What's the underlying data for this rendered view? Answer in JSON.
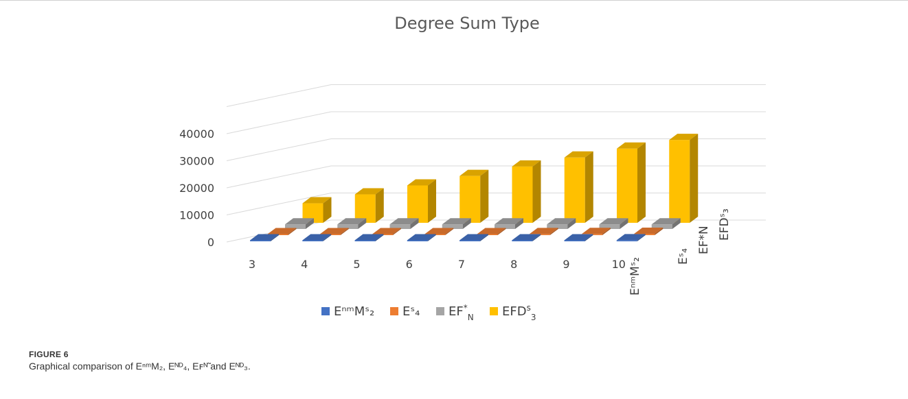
{
  "chart_data": {
    "type": "bar",
    "title": "Degree Sum Type",
    "categories": [
      "3",
      "4",
      "5",
      "6",
      "7",
      "8",
      "9",
      "10"
    ],
    "y_ticks": [
      "0",
      "10000",
      "20000",
      "30000",
      "40000"
    ],
    "ylim": [
      0,
      50000
    ],
    "grid": true,
    "legend_position": "bottom",
    "series": [
      {
        "name": "EⁿᵐMˢ₂",
        "values": [
          120,
          160,
          200,
          240,
          280,
          320,
          360,
          400
        ],
        "color": "#4472c4"
      },
      {
        "name": "Eˢ₄",
        "values": [
          150,
          200,
          250,
          300,
          350,
          400,
          450,
          500
        ],
        "color": "#ed7d31"
      },
      {
        "name": "EF*N",
        "values": [
          1700,
          1700,
          1700,
          1700,
          1700,
          1700,
          1700,
          1700
        ],
        "color": "#a5a5a5"
      },
      {
        "name": "EFDˢ₃",
        "values": [
          7200,
          10500,
          13800,
          17300,
          20800,
          24100,
          27400,
          30600
        ],
        "color": "#ffc000"
      }
    ],
    "depth_labels": [
      "EⁿᵐMˢ₂",
      "Eˢ₄",
      "EF*N",
      "EFDˢ₃"
    ]
  },
  "legend": {
    "items": [
      {
        "base": "EⁿᵐMˢ₂",
        "sup": "",
        "sub": ""
      },
      {
        "base": "Eˢ₄",
        "sup": "",
        "sub": ""
      },
      {
        "base": "EF",
        "sup": "*",
        "sub": "N"
      },
      {
        "base": "EFD",
        "sup": "s",
        "sub": "3"
      }
    ]
  },
  "caption": {
    "label": "FIGURE 6",
    "text": "Graphical comparison of EⁿᵐM₂, Eᴺᴰ₄, Eꜰᴺ̃ and Eᴺᴰ₃."
  },
  "colors": {
    "blue": "#4472c4",
    "orange": "#ed7d31",
    "gray": "#a5a5a5",
    "yellow": "#ffc000"
  }
}
